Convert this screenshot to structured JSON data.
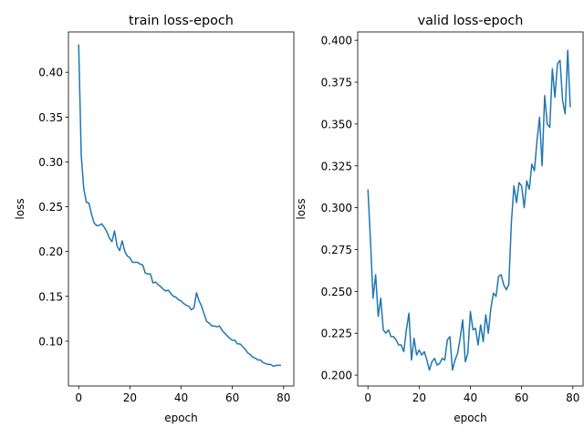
{
  "chart_data": [
    {
      "type": "line",
      "title": "train loss-epoch",
      "xlabel": "epoch",
      "ylabel": "loss",
      "xlim": [
        -4,
        84
      ],
      "ylim": [
        0.05,
        0.445
      ],
      "xticks": [
        0,
        20,
        40,
        60,
        80
      ],
      "xtick_labels": [
        "0",
        "20",
        "40",
        "60",
        "80"
      ],
      "yticks": [
        0.1,
        0.15,
        0.2,
        0.25,
        0.3,
        0.35,
        0.4
      ],
      "ytick_labels": [
        "0.10",
        "0.15",
        "0.20",
        "0.25",
        "0.30",
        "0.35",
        "0.40"
      ],
      "grid": false,
      "series": [
        {
          "color": "#1f77b4",
          "x": [
            0,
            1,
            2,
            3,
            4,
            5,
            6,
            7,
            8,
            9,
            10,
            11,
            12,
            13,
            14,
            15,
            16,
            17,
            18,
            19,
            20,
            21,
            22,
            23,
            24,
            25,
            26,
            27,
            28,
            29,
            30,
            31,
            32,
            33,
            34,
            35,
            36,
            37,
            38,
            39,
            40,
            41,
            42,
            43,
            44,
            45,
            46,
            47,
            48,
            49,
            50,
            51,
            52,
            53,
            54,
            55,
            56,
            57,
            58,
            59,
            60,
            61,
            62,
            63,
            64,
            65,
            66,
            67,
            68,
            69,
            70,
            71,
            72,
            73,
            74,
            75,
            76,
            77,
            78,
            79
          ],
          "values": [
            0.431,
            0.307,
            0.27,
            0.255,
            0.254,
            0.242,
            0.232,
            0.229,
            0.229,
            0.231,
            0.227,
            0.222,
            0.215,
            0.211,
            0.223,
            0.206,
            0.201,
            0.212,
            0.2,
            0.195,
            0.193,
            0.188,
            0.188,
            0.188,
            0.186,
            0.185,
            0.176,
            0.175,
            0.175,
            0.165,
            0.166,
            0.163,
            0.161,
            0.158,
            0.156,
            0.157,
            0.153,
            0.15,
            0.149,
            0.146,
            0.145,
            0.142,
            0.14,
            0.139,
            0.135,
            0.137,
            0.154,
            0.145,
            0.139,
            0.13,
            0.122,
            0.12,
            0.117,
            0.117,
            0.116,
            0.117,
            0.112,
            0.109,
            0.106,
            0.103,
            0.101,
            0.101,
            0.097,
            0.097,
            0.094,
            0.091,
            0.087,
            0.085,
            0.082,
            0.081,
            0.079,
            0.079,
            0.076,
            0.075,
            0.074,
            0.074,
            0.072,
            0.073,
            0.073,
            0.073
          ]
        }
      ]
    },
    {
      "type": "line",
      "title": "valid loss-epoch",
      "xlabel": "epoch",
      "ylabel": "loss",
      "xlim": [
        -4,
        84
      ],
      "ylim": [
        0.1935,
        0.405
      ],
      "xticks": [
        0,
        20,
        40,
        60,
        80
      ],
      "xtick_labels": [
        "0",
        "20",
        "40",
        "60",
        "80"
      ],
      "yticks": [
        0.2,
        0.225,
        0.25,
        0.275,
        0.3,
        0.325,
        0.35,
        0.375,
        0.4
      ],
      "ytick_labels": [
        "0.200",
        "0.225",
        "0.250",
        "0.275",
        "0.300",
        "0.325",
        "0.350",
        "0.375",
        "0.400"
      ],
      "grid": false,
      "series": [
        {
          "color": "#1f77b4",
          "x": [
            0,
            1,
            2,
            3,
            4,
            5,
            6,
            7,
            8,
            9,
            10,
            11,
            12,
            13,
            14,
            15,
            16,
            17,
            18,
            19,
            20,
            21,
            22,
            23,
            24,
            25,
            26,
            27,
            28,
            29,
            30,
            31,
            32,
            33,
            34,
            35,
            36,
            37,
            38,
            39,
            40,
            41,
            42,
            43,
            44,
            45,
            46,
            47,
            48,
            49,
            50,
            51,
            52,
            53,
            54,
            55,
            56,
            57,
            58,
            59,
            60,
            61,
            62,
            63,
            64,
            65,
            66,
            67,
            68,
            69,
            70,
            71,
            72,
            73,
            74,
            75,
            76,
            77,
            78,
            79
          ],
          "values": [
            0.311,
            0.28,
            0.246,
            0.26,
            0.235,
            0.246,
            0.227,
            0.225,
            0.227,
            0.223,
            0.223,
            0.221,
            0.218,
            0.218,
            0.214,
            0.227,
            0.237,
            0.209,
            0.222,
            0.212,
            0.215,
            0.212,
            0.214,
            0.209,
            0.203,
            0.208,
            0.21,
            0.206,
            0.207,
            0.21,
            0.209,
            0.221,
            0.223,
            0.203,
            0.209,
            0.213,
            0.222,
            0.233,
            0.208,
            0.213,
            0.238,
            0.227,
            0.228,
            0.218,
            0.23,
            0.22,
            0.236,
            0.225,
            0.24,
            0.249,
            0.247,
            0.259,
            0.26,
            0.254,
            0.251,
            0.254,
            0.291,
            0.313,
            0.303,
            0.315,
            0.313,
            0.3,
            0.316,
            0.311,
            0.326,
            0.322,
            0.34,
            0.354,
            0.325,
            0.367,
            0.35,
            0.348,
            0.383,
            0.366,
            0.386,
            0.388,
            0.364,
            0.356,
            0.394,
            0.36
          ]
        }
      ]
    }
  ]
}
